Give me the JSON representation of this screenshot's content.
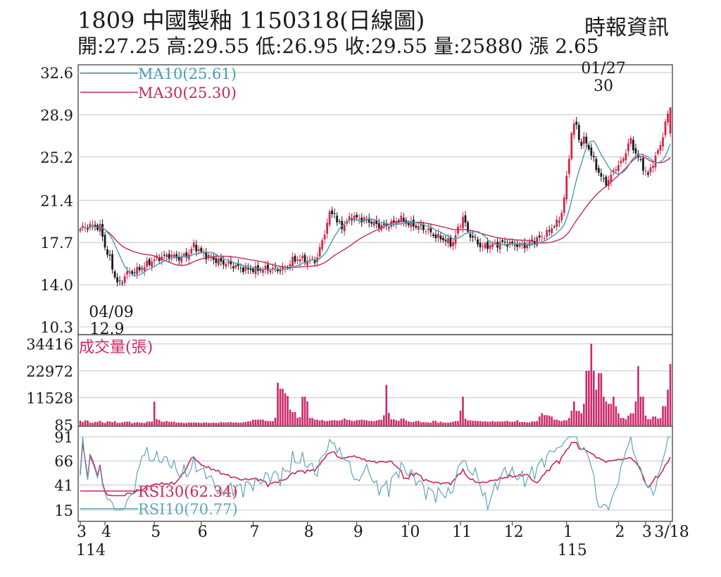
{
  "header": {
    "title": "1809  中國製釉 1150318(日線圖)",
    "source": "時報資訊",
    "stats": "開:27.25 高:29.55 低:26.95 收:29.55 量:25880 漲 2.65"
  },
  "colors": {
    "up": "#d2264b",
    "down": "#1a1a1a",
    "ma10": "#4a9ab8",
    "ma30": "#c8285a",
    "volume": "#cc2a6a",
    "rsi10": "#5fa3bd",
    "rsi30": "#c8285a"
  },
  "chart_data": [
    {
      "type": "candlestick",
      "panel": "price",
      "y_ticks": [
        "32.6",
        "28.9",
        "25.2",
        "21.4",
        "17.7",
        "14.0",
        "10.3"
      ],
      "ylim": [
        10.3,
        32.6
      ],
      "series": [
        {
          "name": "MA10(25.61)",
          "key": "ma10"
        },
        {
          "name": "MA30(25.30)",
          "key": "ma30"
        }
      ],
      "annotations": [
        {
          "text": "01/27",
          "value": 30
        },
        {
          "text": "30",
          "value": 30
        },
        {
          "text": "04/09",
          "value": 12.9
        },
        {
          "text": "12.9",
          "value": 12.9
        }
      ]
    },
    {
      "type": "bar",
      "panel": "volume",
      "label": "成交量(張)",
      "y_ticks": [
        "34416",
        "22972",
        "11528",
        "85"
      ],
      "ylim": [
        85,
        34416
      ],
      "values": [
        1820,
        1300,
        1960,
        1050,
        920,
        1340,
        1780,
        1190,
        870,
        1510,
        1230,
        1640,
        920,
        1120,
        1330,
        1450,
        800,
        1050,
        1190,
        1030,
        820,
        1430,
        1460,
        9900,
        2500,
        2150,
        1400,
        1710,
        1370,
        1420,
        1000,
        1080,
        1040,
        900,
        1110,
        1020,
        1060,
        980,
        880,
        1090,
        910,
        920,
        1040,
        900,
        1290,
        1080,
        1150,
        1250,
        1040,
        1150,
        1000,
        1140,
        1310,
        1560,
        2250,
        2250,
        2250,
        2280,
        1740,
        1740,
        1640,
        3100,
        17900,
        15400,
        13400,
        12300,
        6500,
        5500,
        3000,
        3330,
        12000,
        10000,
        3000,
        3000,
        2270,
        1900,
        2200,
        1700,
        1850,
        2000,
        2050,
        1900,
        2200,
        2800,
        2200,
        1800,
        1700,
        2100,
        2300,
        2100,
        2000,
        1750,
        1600,
        1900,
        2200,
        4100,
        17000,
        5100,
        2400,
        2000,
        1800,
        2700,
        1900,
        1500,
        1300,
        1700,
        1800,
        1200,
        1200,
        1100,
        1000,
        1800,
        1000,
        1400,
        1100,
        1000,
        1200,
        1400,
        1700,
        6100,
        12000,
        2700,
        2000,
        1800,
        1800,
        1700,
        1500,
        1600,
        1400,
        1700,
        1400,
        1500,
        1500,
        1600,
        1800,
        1400,
        1500,
        2000,
        1300,
        1300,
        1100,
        1100,
        1500,
        1700,
        3600,
        5000,
        4200,
        4000,
        3600,
        2300,
        1900,
        1600,
        2000,
        3000,
        6000,
        10000,
        6000,
        5000,
        9000,
        23000,
        34416,
        23000,
        15000,
        22000,
        12000,
        10000,
        9000,
        12000,
        8000,
        5000,
        3000,
        2500,
        4000,
        5000,
        10000,
        25000,
        12000,
        4000,
        2500,
        2500,
        3600,
        2700,
        3000,
        8000,
        15000,
        25880
      ]
    },
    {
      "type": "line",
      "panel": "rsi",
      "y_ticks": [
        "91",
        "66",
        "41",
        "15"
      ],
      "ylim": [
        15,
        91
      ],
      "series": [
        {
          "name": "RSI30(62.34)",
          "key": "rsi30"
        },
        {
          "name": "RSI10(70.77)",
          "key": "rsi10"
        }
      ]
    },
    {
      "type": "axis",
      "x_ticks": [
        {
          "label": "3",
          "index": 0
        },
        {
          "label": "4",
          "index": 10
        },
        {
          "label": "5",
          "index": 30
        },
        {
          "label": "6",
          "index": 49
        },
        {
          "label": "7",
          "index": 70
        },
        {
          "label": "8",
          "index": 92
        },
        {
          "label": "9",
          "index": 112
        },
        {
          "label": "10",
          "index": 133
        },
        {
          "label": "11",
          "index": 154
        },
        {
          "label": "12",
          "index": 175
        },
        {
          "label": "1",
          "index": 197
        },
        {
          "label": "2",
          "index": 218
        },
        {
          "label": "3",
          "index": 229
        },
        {
          "label": "3/18",
          "index": 239
        }
      ],
      "year_labels": [
        {
          "label": "114",
          "index": 2
        },
        {
          "label": "115",
          "index": 197
        }
      ]
    }
  ]
}
